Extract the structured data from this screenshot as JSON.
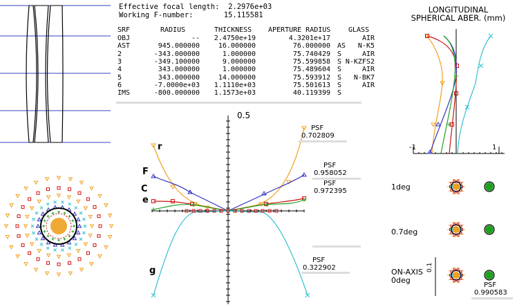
{
  "header": {
    "efl_label": "Effective focal length:",
    "efl_value": "2.2976e+03",
    "fnum_label": "Working F-number:",
    "fnum_value": "15.115581"
  },
  "table": {
    "columns": [
      "SRF",
      "RADIUS",
      "THICKNESS",
      "APERTURE RADIUS",
      "GLASS"
    ],
    "rows": [
      {
        "srf": "OBJ",
        "radius": "--",
        "thickness": "2.4750e+19",
        "aperture": "4.3201e+17",
        "flag": "",
        "glass": "AIR"
      },
      {
        "srf": "AST",
        "radius": "945.000000",
        "thickness": "16.000000",
        "aperture": "76.000000",
        "flag": "AS",
        "glass": "N-K5"
      },
      {
        "srf": "2",
        "radius": "-343.000000",
        "thickness": "1.000000",
        "aperture": "75.740429",
        "flag": "S",
        "glass": "AIR"
      },
      {
        "srf": "3",
        "radius": "-349.100000",
        "thickness": "9.000000",
        "aperture": "75.599858",
        "flag": "S",
        "glass": "N-KZFS2"
      },
      {
        "srf": "4",
        "radius": "343.000000",
        "thickness": "1.000000",
        "aperture": "75.489604",
        "flag": "S",
        "glass": "AIR"
      },
      {
        "srf": "5",
        "radius": "343.000000",
        "thickness": "14.000000",
        "aperture": "75.593912",
        "flag": "S",
        "glass": "N-BK7"
      },
      {
        "srf": "6",
        "radius": "-7.0000e+03",
        "thickness": "1.1110e+03",
        "aperture": "75.501613",
        "flag": "S",
        "glass": "AIR"
      },
      {
        "srf": "IMS",
        "radius": "-800.000000",
        "thickness": "1.1573e+03",
        "aperture": "40.119399",
        "flag": "S",
        "glass": ""
      }
    ]
  },
  "spherical": {
    "title_line1": "LONGITUDINAL",
    "title_line2": "SPHERICAL ABER. (mm)",
    "tick_left": "-1",
    "tick_right": "1"
  },
  "fan": {
    "top_label": "0.5",
    "psf_label": "PSF",
    "labels": {
      "r": "r",
      "F": "F",
      "C": "C",
      "e": "e",
      "g": "g"
    },
    "psf_values": [
      "0.702809",
      "0.958052",
      "0.972395",
      "0.322902"
    ]
  },
  "spots": {
    "field_1deg": "1deg",
    "field_07deg": "0.7deg",
    "onaxis_line1": "ON-AXIS",
    "onaxis_line2": "0deg",
    "scale": "0.1",
    "psf_label": "PSF",
    "psf_value": "0.990583"
  },
  "colors": {
    "r": "#f0a020",
    "F": "#3030c0",
    "C": "#d01010",
    "e": "#20a020",
    "g": "#30c0d0",
    "axis": "#000000"
  }
}
